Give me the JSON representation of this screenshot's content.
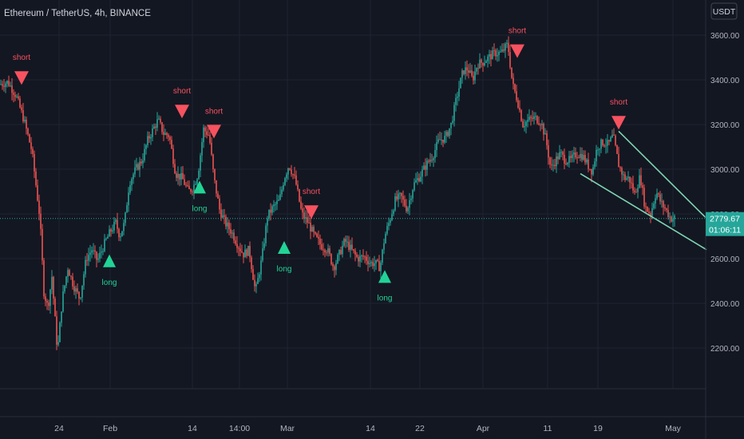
{
  "header": {
    "symbol_title": "Ethereum / TetherUS, 4h, BINANCE",
    "currency_badge": "USDT"
  },
  "price_label": {
    "price": "2779.67",
    "countdown": "01:06:11"
  },
  "colors": {
    "background": "#131722",
    "grid": "#1f2331",
    "axis_text": "#b2b5be",
    "candle_up": "#26a69a",
    "candle_down": "#ef5350",
    "signal_short": "#f7525f",
    "signal_long": "#22d396",
    "trendline": "#7fd4b2",
    "price_line": "#26a69a"
  },
  "chart_data": {
    "type": "candlestick",
    "title": "Ethereum / TetherUS, 4h, BINANCE",
    "ylabel": "USDT",
    "ylim": [
      2000,
      3700
    ],
    "y_ticks": [
      2200,
      2400,
      2600,
      2800,
      3000,
      3200,
      3400,
      3600
    ],
    "y_tick_labels": [
      "2200.00",
      "2400.00",
      "2600.00",
      "2800.00",
      "3000.00",
      "3200.00",
      "3400.00",
      "3600.00"
    ],
    "x_ticks": [
      "24",
      "Feb",
      "14",
      "14:00",
      "Mar",
      "14",
      "22",
      "Apr",
      "11",
      "19",
      "May"
    ],
    "grid": true,
    "current_price": 2779.67,
    "price_path": [
      [
        0,
        3380
      ],
      [
        10,
        3390
      ],
      [
        20,
        3330
      ],
      [
        30,
        3220
      ],
      [
        40,
        3080
      ],
      [
        50,
        2780
      ],
      [
        55,
        2450
      ],
      [
        60,
        2380
      ],
      [
        65,
        2520
      ],
      [
        72,
        2180
      ],
      [
        78,
        2420
      ],
      [
        85,
        2560
      ],
      [
        92,
        2480
      ],
      [
        100,
        2420
      ],
      [
        108,
        2600
      ],
      [
        115,
        2640
      ],
      [
        122,
        2590
      ],
      [
        130,
        2660
      ],
      [
        138,
        2720
      ],
      [
        145,
        2760
      ],
      [
        150,
        2700
      ],
      [
        156,
        2760
      ],
      [
        162,
        2940
      ],
      [
        170,
        3000
      ],
      [
        178,
        3040
      ],
      [
        185,
        3130
      ],
      [
        192,
        3180
      ],
      [
        198,
        3220
      ],
      [
        205,
        3160
      ],
      [
        212,
        3150
      ],
      [
        220,
        2980
      ],
      [
        228,
        2960
      ],
      [
        236,
        2900
      ],
      [
        242,
        2920
      ],
      [
        248,
        2980
      ],
      [
        255,
        3180
      ],
      [
        262,
        3150
      ],
      [
        268,
        2960
      ],
      [
        275,
        2820
      ],
      [
        282,
        2760
      ],
      [
        290,
        2720
      ],
      [
        298,
        2660
      ],
      [
        305,
        2620
      ],
      [
        312,
        2640
      ],
      [
        320,
        2450
      ],
      [
        328,
        2600
      ],
      [
        335,
        2790
      ],
      [
        342,
        2830
      ],
      [
        350,
        2860
      ],
      [
        356,
        2960
      ],
      [
        362,
        3020
      ],
      [
        370,
        2950
      ],
      [
        378,
        2800
      ],
      [
        386,
        2760
      ],
      [
        394,
        2700
      ],
      [
        402,
        2660
      ],
      [
        410,
        2640
      ],
      [
        418,
        2560
      ],
      [
        425,
        2620
      ],
      [
        432,
        2680
      ],
      [
        440,
        2640
      ],
      [
        448,
        2600
      ],
      [
        456,
        2610
      ],
      [
        464,
        2580
      ],
      [
        470,
        2580
      ],
      [
        476,
        2560
      ],
      [
        482,
        2700
      ],
      [
        488,
        2770
      ],
      [
        495,
        2860
      ],
      [
        502,
        2880
      ],
      [
        510,
        2820
      ],
      [
        518,
        2930
      ],
      [
        526,
        2970
      ],
      [
        534,
        3020
      ],
      [
        542,
        3060
      ],
      [
        550,
        3130
      ],
      [
        558,
        3140
      ],
      [
        565,
        3200
      ],
      [
        572,
        3320
      ],
      [
        580,
        3440
      ],
      [
        586,
        3450
      ],
      [
        592,
        3400
      ],
      [
        598,
        3470
      ],
      [
        605,
        3480
      ],
      [
        612,
        3500
      ],
      [
        620,
        3520
      ],
      [
        628,
        3520
      ],
      [
        636,
        3560
      ],
      [
        642,
        3380
      ],
      [
        648,
        3310
      ],
      [
        655,
        3200
      ],
      [
        662,
        3220
      ],
      [
        670,
        3230
      ],
      [
        678,
        3210
      ],
      [
        684,
        3130
      ],
      [
        690,
        3000
      ],
      [
        696,
        3040
      ],
      [
        702,
        3070
      ],
      [
        708,
        3040
      ],
      [
        715,
        3040
      ],
      [
        722,
        3070
      ],
      [
        730,
        3060
      ],
      [
        736,
        3020
      ],
      [
        742,
        2990
      ],
      [
        748,
        3100
      ],
      [
        755,
        3120
      ],
      [
        762,
        3110
      ],
      [
        768,
        3150
      ],
      [
        775,
        3020
      ],
      [
        782,
        2960
      ],
      [
        788,
        2960
      ],
      [
        795,
        2890
      ],
      [
        802,
        2970
      ],
      [
        808,
        2830
      ],
      [
        815,
        2800
      ],
      [
        822,
        2900
      ],
      [
        828,
        2850
      ],
      [
        834,
        2820
      ],
      [
        840,
        2780
      ],
      [
        845,
        2780
      ]
    ],
    "signals": [
      {
        "type": "short",
        "label": "short",
        "x": 27,
        "price": 3410
      },
      {
        "type": "short",
        "label": "short",
        "x": 228,
        "price": 3260
      },
      {
        "type": "short",
        "label": "short",
        "x": 268,
        "price": 3170
      },
      {
        "type": "short",
        "label": "short",
        "x": 390,
        "price": 2810
      },
      {
        "type": "short",
        "label": "short",
        "x": 648,
        "price": 3530
      },
      {
        "type": "short",
        "label": "short",
        "x": 775,
        "price": 3210
      },
      {
        "type": "long",
        "label": "long",
        "x": 137,
        "price": 2590
      },
      {
        "type": "long",
        "label": "long",
        "x": 250,
        "price": 2920
      },
      {
        "type": "long",
        "label": "long",
        "x": 356,
        "price": 2650
      },
      {
        "type": "long",
        "label": "long",
        "x": 482,
        "price": 2520
      }
    ],
    "trendlines": [
      {
        "name": "upper",
        "from": [
          775,
          3170
        ],
        "to": [
          885,
          2780
        ]
      },
      {
        "name": "lower",
        "from": [
          727,
          2980
        ],
        "to": [
          885,
          2640
        ]
      }
    ]
  }
}
